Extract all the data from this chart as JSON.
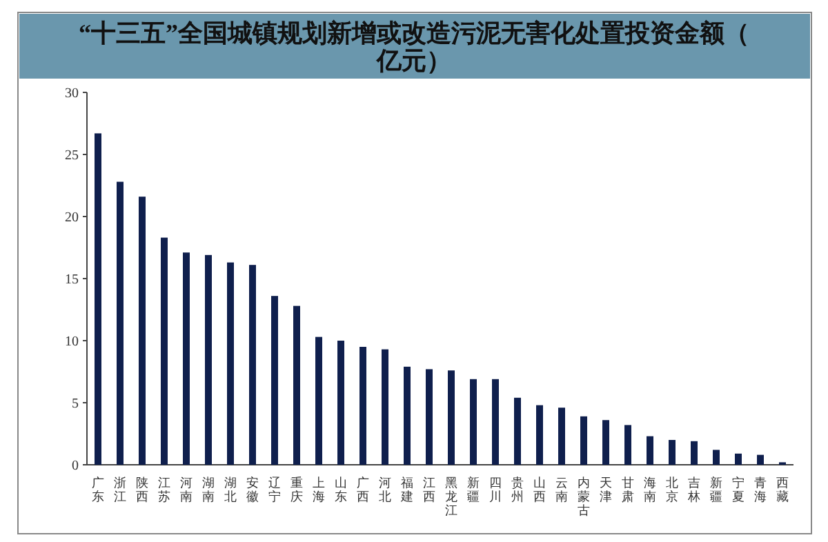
{
  "chart_data": {
    "type": "bar",
    "title": "“十三五”全国城镇规划新增或改造污泥无害化处置投资金额（亿元）",
    "categories": [
      "广东",
      "浙江",
      "陕西",
      "江苏",
      "河南",
      "湖南",
      "湖北",
      "安徽",
      "辽宁",
      "重庆",
      "上海",
      "山东",
      "广西",
      "河北",
      "福建",
      "江西",
      "黑龙江",
      "新疆",
      "四川",
      "贵州",
      "山西",
      "云南",
      "内蒙古",
      "天津",
      "甘肃",
      "海南",
      "北京",
      "吉林",
      "新疆",
      "宁夏",
      "青海",
      "西藏"
    ],
    "values": [
      26.7,
      22.8,
      21.6,
      18.3,
      17.1,
      16.9,
      16.3,
      16.1,
      13.6,
      12.8,
      10.3,
      10.0,
      9.5,
      9.3,
      7.9,
      7.7,
      7.6,
      6.9,
      6.9,
      5.4,
      4.8,
      4.6,
      3.9,
      3.6,
      3.2,
      2.3,
      2.0,
      1.9,
      1.2,
      0.9,
      0.8,
      0.2
    ],
    "color": "#0f1f4d",
    "ylim": [
      0,
      30
    ],
    "yticks": [
      0,
      5,
      10,
      15,
      20,
      25,
      30
    ],
    "grid": false
  }
}
